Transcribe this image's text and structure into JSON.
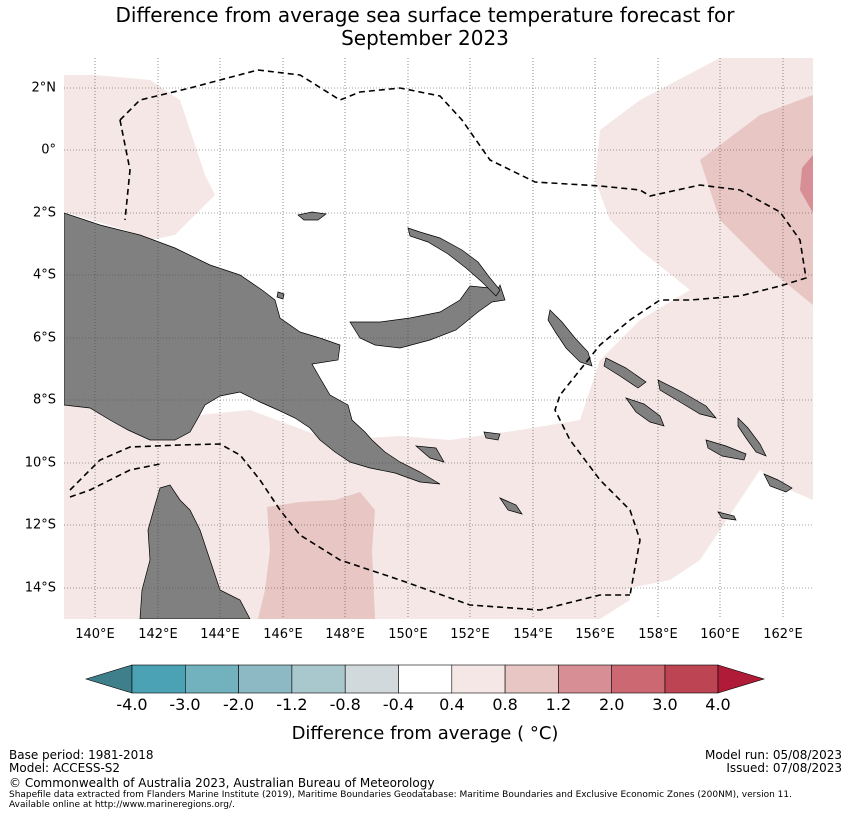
{
  "title": {
    "line1": "Difference from average sea surface temperature forecast for",
    "line2": "September 2023"
  },
  "map": {
    "lat_ticks": [
      "2°N",
      "0°",
      "2°S",
      "4°S",
      "6°S",
      "8°S",
      "10°S",
      "12°S",
      "14°S"
    ],
    "lon_ticks": [
      "140°E",
      "142°E",
      "144°E",
      "146°E",
      "148°E",
      "150°E",
      "152°E",
      "154°E",
      "156°E",
      "158°E",
      "160°E",
      "162°E"
    ],
    "land_color": "#808080",
    "boundary_style": "dashed"
  },
  "colorbar": {
    "labels": [
      "-4.0",
      "-3.0",
      "-2.0",
      "-1.2",
      "-0.8",
      "-0.4",
      "0.4",
      "0.8",
      "1.2",
      "2.0",
      "3.0",
      "4.0"
    ],
    "colors": [
      "#3f7f8c",
      "#4aa2b4",
      "#72b1be",
      "#8db9c4",
      "#a9c8cd",
      "#d2d9dc",
      "#ffffff",
      "#f4e7e6",
      "#e8c6c3",
      "#d88e95",
      "#cb6872",
      "#bd4452",
      "#b01c38"
    ],
    "title": "Difference from average ( °C)"
  },
  "footer": {
    "base_period": "Base period: 1981-2018",
    "model": "Model: ACCESS-S2",
    "model_run": "Model run: 05/08/2023",
    "issued": "Issued: 07/08/2023",
    "copyright": "© Commonwealth of Australia 2023, Australian Bureau of Meteorology",
    "shapefile_line1": "Shapefile data extracted from Flanders Marine Institute (2019), Maritime Boundaries Geodatabase: Maritime Boundaries and Exclusive Economic Zones (200NM), version 11.",
    "shapefile_line2": "Available online at http://www.marineregions.org/."
  }
}
